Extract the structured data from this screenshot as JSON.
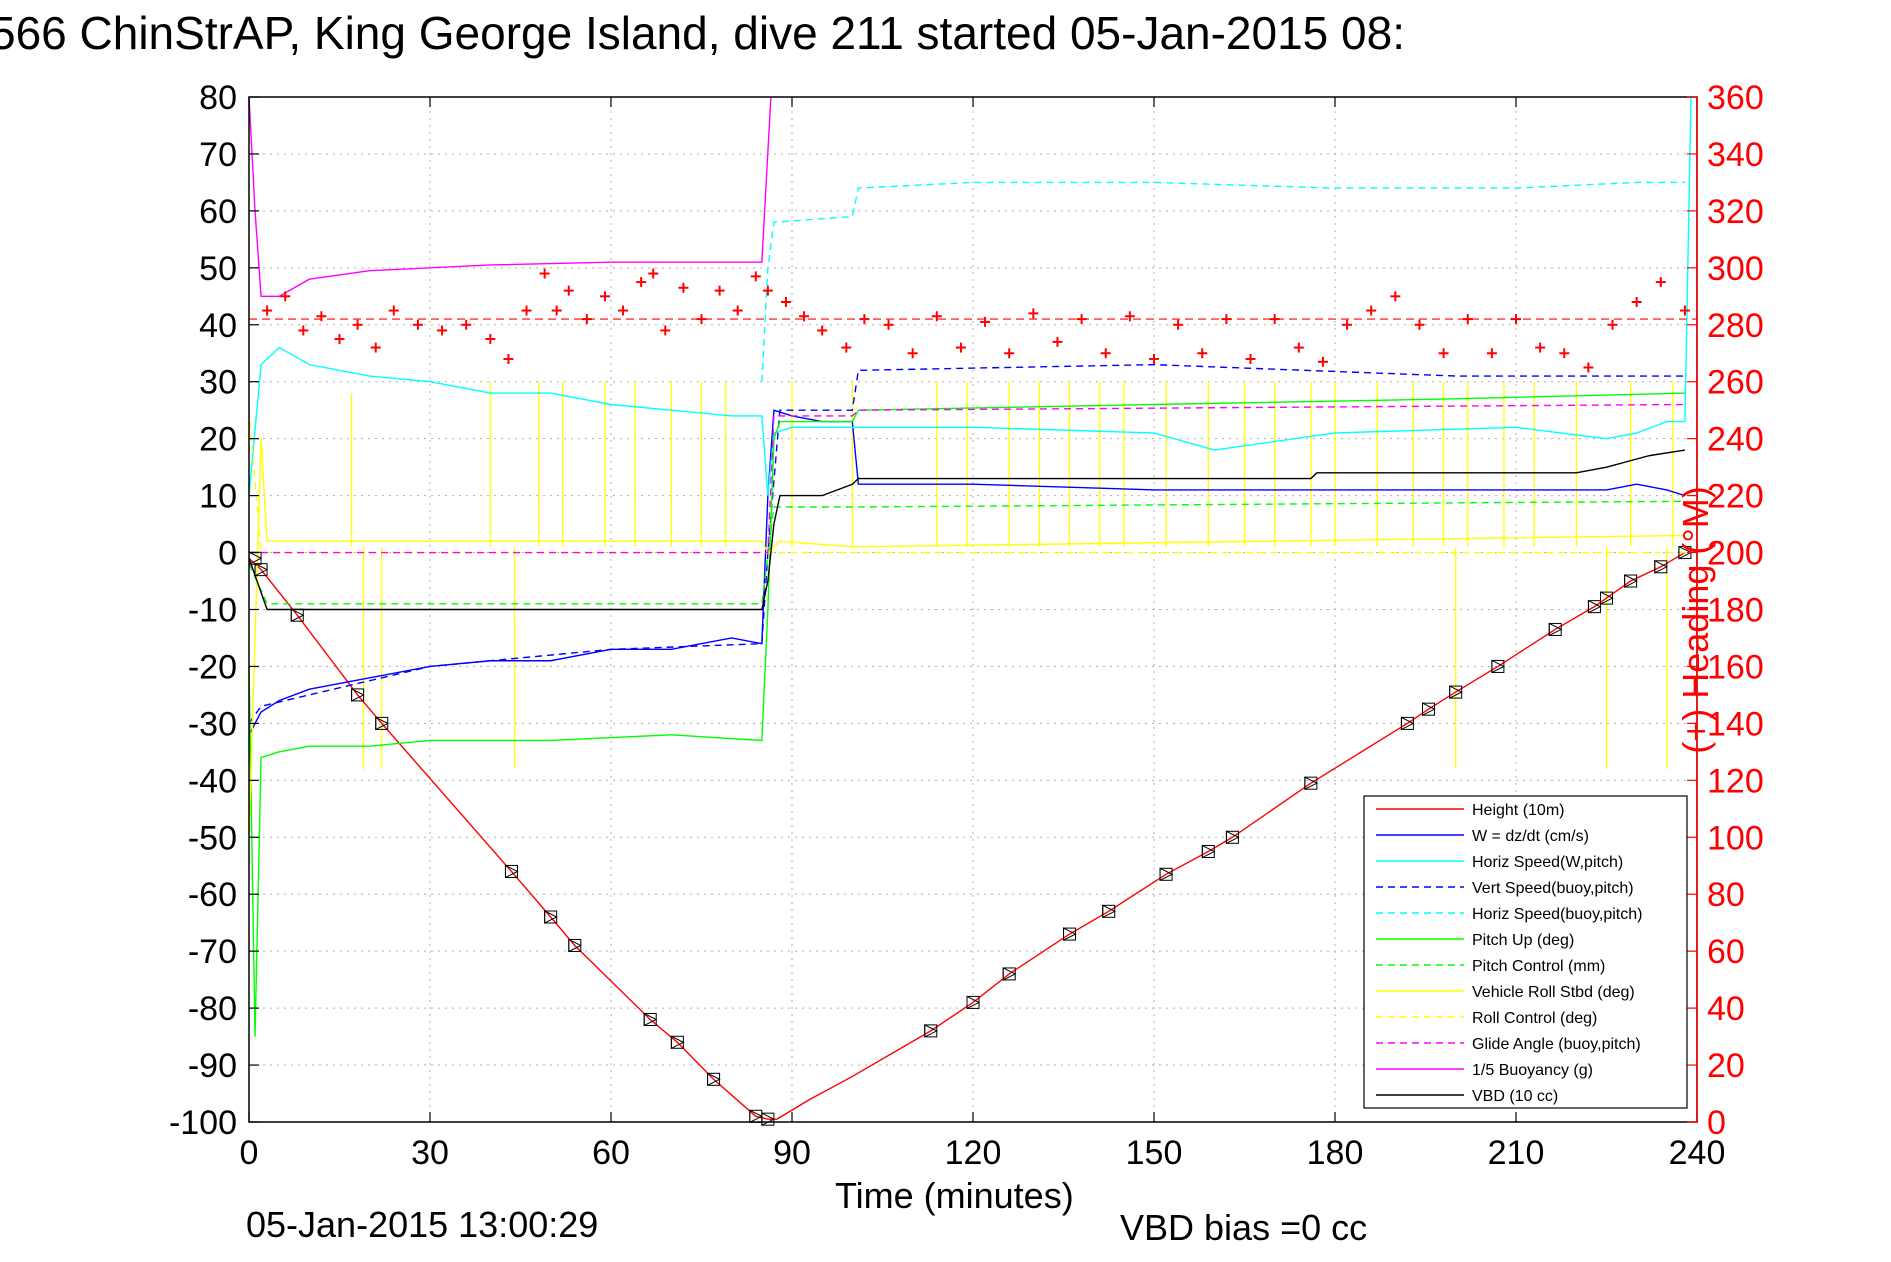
{
  "title": "566 ChinStrAP, King George Island, dive 211 started 05-Jan-2015 08:",
  "footer": {
    "timestamp": "05-Jan-2015 13:00:29",
    "vbd_bias": "VBD bias =0 cc"
  },
  "colors": {
    "height": "#ff0000",
    "w": "#0000ff",
    "horiz_speed": "#00ffff",
    "pitch": "#00ff00",
    "roll": "#ffff00",
    "glide": "#ff00ff",
    "buoyancy": "#ff00ff",
    "vbd": "#000000",
    "heading": "#ff0000"
  },
  "chart_data": {
    "type": "line",
    "title": "566 ChinStrAP, King George Island, dive 211 started 05-Jan-2015 08:",
    "xlabel": "Time (minutes)",
    "ylabel": "",
    "y2label": "(+) Heading (°M)",
    "xlim": [
      0,
      240
    ],
    "ylim": [
      -100,
      80
    ],
    "y2lim": [
      0,
      360
    ],
    "grid": true,
    "legend_position": "bottom-right",
    "x_ticks": [
      "0",
      "30",
      "60",
      "90",
      "120",
      "150",
      "180",
      "210",
      "240"
    ],
    "y_ticks": [
      "80",
      "70",
      "60",
      "50",
      "40",
      "30",
      "20",
      "10",
      "0",
      "-10",
      "-20",
      "-30",
      "-40",
      "-50",
      "-60",
      "-70",
      "-80",
      "-90",
      "-100"
    ],
    "y2_ticks": [
      "360",
      "340",
      "320",
      "300",
      "280",
      "260",
      "240",
      "220",
      "200",
      "180",
      "160",
      "140",
      "120",
      "100",
      "80",
      "60",
      "40",
      "20",
      "0"
    ],
    "series": [
      {
        "name": "Height (10m)",
        "color": "#ff0000",
        "style": "solid",
        "x": [
          0,
          2,
          8,
          18,
          22,
          43.5,
          50,
          54,
          66.5,
          71,
          77,
          84,
          86,
          87.5,
          93,
          100,
          113,
          120,
          126,
          136,
          142.5,
          152,
          159,
          163,
          176,
          192,
          195.5,
          200,
          207,
          216.5,
          223,
          225,
          229,
          234,
          238
        ],
        "y": [
          -1,
          -3,
          -11,
          -25,
          -30,
          -56,
          -64,
          -69,
          -82,
          -86,
          -92.5,
          -99,
          -99.5,
          -99.5,
          -96,
          -92,
          -84,
          -79,
          -74,
          -67,
          -63,
          -56.5,
          -52.5,
          -50,
          -40.5,
          -30,
          -27.5,
          -24.5,
          -20,
          -13.5,
          -9.5,
          -8,
          -5,
          -2.5,
          0
        ]
      },
      {
        "name": "W = dz/dt (cm/s)",
        "color": "#0000ff",
        "style": "solid",
        "x": [
          0,
          2,
          5,
          10,
          20,
          30,
          40,
          50,
          60,
          70,
          80,
          85,
          86,
          87,
          90,
          95,
          100,
          101,
          120,
          150,
          180,
          210,
          225,
          230,
          235,
          238
        ],
        "y": [
          -32,
          -28,
          -26,
          -24,
          -22,
          -20,
          -19,
          -19,
          -17,
          -17,
          -15,
          -16,
          10,
          25,
          24,
          23,
          23,
          12,
          12,
          11,
          11,
          11,
          11,
          12,
          11,
          10
        ]
      },
      {
        "name": "Horiz Speed(W,pitch)",
        "color": "#00ffff",
        "style": "solid",
        "x": [
          0,
          2,
          5,
          10,
          20,
          30,
          40,
          50,
          60,
          70,
          80,
          85,
          86,
          87,
          90,
          95,
          100,
          120,
          150,
          160,
          180,
          210,
          225,
          230,
          235,
          238,
          239
        ],
        "y": [
          10,
          33,
          36,
          33,
          31,
          30,
          28,
          28,
          26,
          25,
          24,
          24,
          10,
          21,
          22,
          22,
          22,
          22,
          21,
          18,
          21,
          22,
          20,
          21,
          23,
          23,
          80
        ]
      },
      {
        "name": "Vert Speed(buoy,pitch)",
        "color": "#0000ff",
        "style": "dashed",
        "x": [
          0,
          2,
          30,
          60,
          85,
          86,
          88,
          100,
          101,
          150,
          200,
          238
        ],
        "y": [
          -30,
          -27,
          -20,
          -17,
          -16,
          0,
          25,
          25,
          32,
          33,
          31,
          31
        ]
      },
      {
        "name": "Horiz Speed(buoy,pitch)",
        "color": "#00ffff",
        "style": "dashed",
        "x": [
          85,
          86,
          87,
          100,
          101,
          120,
          150,
          180,
          210,
          230,
          238
        ],
        "y": [
          30,
          50,
          58,
          59,
          64,
          65,
          65,
          64,
          64,
          65,
          65
        ]
      },
      {
        "name": "Pitch Up (deg)",
        "color": "#00ff00",
        "style": "solid",
        "x": [
          0,
          1,
          2,
          5,
          10,
          20,
          30,
          50,
          70,
          85,
          86,
          87,
          88,
          100,
          101,
          150,
          200,
          238
        ],
        "y": [
          -20,
          -85,
          -36,
          -35,
          -34,
          -34,
          -33,
          -33,
          -32,
          -33,
          -10,
          20,
          23,
          23,
          25,
          26,
          27,
          28
        ]
      },
      {
        "name": "Pitch Control (mm)",
        "color": "#00ff00",
        "style": "dashed",
        "x": [
          0,
          3,
          85,
          87,
          100,
          238
        ],
        "y": [
          -2,
          -9,
          -9,
          8,
          8,
          9
        ]
      },
      {
        "name": "Vehicle Roll Stbd (deg)",
        "color": "#ffff00",
        "style": "solid",
        "x": [
          0,
          2,
          3,
          10,
          40,
          85,
          86,
          88,
          100,
          238
        ],
        "y": [
          -50,
          20,
          2,
          2,
          2,
          2,
          0,
          2,
          1,
          3
        ]
      },
      {
        "name": "Roll Control (deg)",
        "color": "#ffff00",
        "style": "dashed",
        "x": [
          0,
          2,
          40,
          85,
          86,
          238
        ],
        "y": [
          25,
          0,
          0,
          0,
          0,
          0
        ]
      },
      {
        "name": "Glide Angle (buoy,pitch)",
        "color": "#ff00ff",
        "style": "dashed",
        "x": [
          0,
          86,
          87,
          100,
          101,
          238
        ],
        "y": [
          0,
          0,
          24,
          24,
          25,
          26
        ]
      },
      {
        "name": "1/5 Buoyancy (g)",
        "color": "#ff00ff",
        "style": "solid",
        "x": [
          0,
          1,
          2,
          5,
          10,
          20,
          40,
          60,
          84,
          85,
          86.5
        ],
        "y": [
          80,
          60,
          45,
          45,
          48,
          49.5,
          50.5,
          51,
          51,
          51,
          80
        ]
      },
      {
        "name": "VBD (10 cc)",
        "color": "#000000",
        "style": "solid",
        "x": [
          0,
          3,
          85,
          86,
          87,
          88,
          95,
          100,
          101,
          150,
          176,
          177,
          220,
          225,
          232,
          238
        ],
        "y": [
          -1,
          -10,
          -10,
          -5,
          5,
          10,
          10,
          12,
          13,
          13,
          13,
          14,
          14,
          15,
          17,
          18
        ]
      }
    ],
    "heading_series": {
      "name": "(+) Heading (°M)",
      "axis": "right",
      "color": "#ff0000",
      "marker": "+",
      "mean_line": 282,
      "x": [
        3,
        6,
        9,
        12,
        15,
        18,
        21,
        24,
        28,
        32,
        36,
        40,
        43,
        46,
        49,
        51,
        53,
        56,
        59,
        62,
        65,
        67,
        69,
        72,
        75,
        78,
        81,
        84,
        86,
        89,
        92,
        95,
        99,
        102,
        106,
        110,
        114,
        118,
        122,
        126,
        130,
        134,
        138,
        142,
        146,
        150,
        154,
        158,
        162,
        166,
        170,
        174,
        178,
        182,
        186,
        190,
        194,
        198,
        202,
        206,
        210,
        214,
        218,
        222,
        226,
        230,
        234,
        238
      ],
      "y": [
        285,
        290,
        278,
        283,
        275,
        280,
        272,
        285,
        280,
        278,
        280,
        275,
        268,
        285,
        298,
        285,
        292,
        282,
        290,
        285,
        295,
        298,
        278,
        293,
        282,
        292,
        285,
        297,
        292,
        288,
        283,
        278,
        272,
        282,
        280,
        270,
        283,
        272,
        281,
        270,
        284,
        274,
        282,
        270,
        283,
        268,
        280,
        270,
        282,
        268,
        282,
        272,
        267,
        280,
        285,
        290,
        280,
        270,
        282,
        270,
        282,
        272,
        270,
        265,
        280,
        288,
        295,
        285
      ]
    },
    "markers": {
      "shape": "triangle-in-square",
      "x": [
        1,
        2,
        8,
        18,
        22,
        43.5,
        50,
        54,
        66.5,
        71,
        77,
        84,
        86,
        113,
        120,
        126,
        136,
        142.5,
        152,
        159,
        163,
        176,
        192,
        195.5,
        200,
        207,
        216.5,
        223,
        225,
        229,
        234,
        238
      ],
      "y": [
        -1,
        -3,
        -11,
        -25,
        -30,
        -56,
        -64,
        -69,
        -82,
        -86,
        -92.5,
        -99,
        -99.5,
        -84,
        -79,
        -74,
        -67,
        -63,
        -56.5,
        -52.5,
        -50,
        -40.5,
        -30,
        -27.5,
        -24.5,
        -20,
        -13.5,
        -9.5,
        -8,
        -5,
        -2.5,
        0
      ]
    },
    "spike_series": [
      {
        "color": "#ffff00",
        "x": [
          19,
          22,
          44,
          200,
          225,
          235
        ],
        "y": [
          -38,
          -38,
          -38,
          -38,
          -38,
          -38
        ]
      },
      {
        "color": "#ffff00",
        "x": [
          17,
          40,
          48,
          52,
          59,
          64,
          70,
          75,
          79,
          90,
          100,
          114,
          119,
          126,
          131,
          136,
          141,
          145,
          152,
          159,
          165,
          170,
          176,
          180,
          187,
          193,
          198,
          202,
          208,
          213,
          220,
          229,
          236
        ],
        "y": [
          28,
          30,
          30,
          30,
          30,
          30,
          30,
          30,
          30,
          30,
          30,
          30,
          30,
          30,
          30,
          30,
          30,
          30,
          30,
          30,
          30,
          30,
          30,
          30,
          30,
          30,
          30,
          30,
          30,
          30,
          30,
          30,
          30
        ]
      }
    ]
  }
}
